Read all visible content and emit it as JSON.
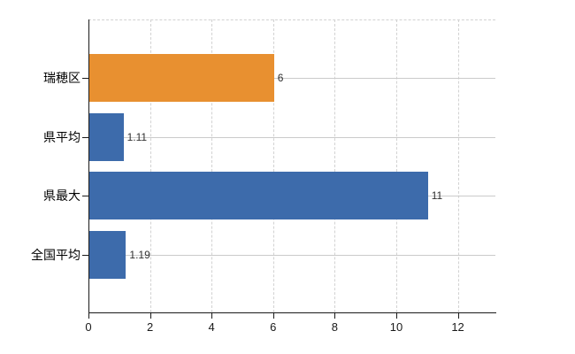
{
  "chart_data": {
    "type": "bar",
    "orientation": "horizontal",
    "title": "",
    "categories": [
      "瑞穂区",
      "県平均",
      "県最大",
      "全国平均"
    ],
    "values": [
      6,
      1.11,
      11,
      1.19
    ],
    "value_labels": [
      "6",
      "1.11",
      "11",
      "1.19"
    ],
    "bar_colors": [
      "#e89030",
      "#3d6bab",
      "#3d6bab",
      "#3d6bab"
    ],
    "xticks": [
      "0",
      "2",
      "4",
      "6",
      "8",
      "10",
      "12"
    ],
    "xtick_values": [
      0,
      2,
      4,
      6,
      8,
      10,
      12
    ],
    "xlim": [
      0,
      13.22
    ],
    "grid": {
      "vertical": "dashed light gray at each x tick",
      "horizontal": "solid light gray at each category center",
      "top_border": "dashed light gray"
    },
    "legend": "none"
  },
  "colors": {
    "background": "#ffffff",
    "axis": "#1a1a1a",
    "grid_horizontal": "#cbcbcb",
    "grid_vertical": "#d2d2d2",
    "bar_highlight": "#e89030",
    "bar_default": "#3d6bab",
    "category_label": "#000000",
    "value_label": "#303030",
    "tick_label": "#1a1a1a"
  }
}
